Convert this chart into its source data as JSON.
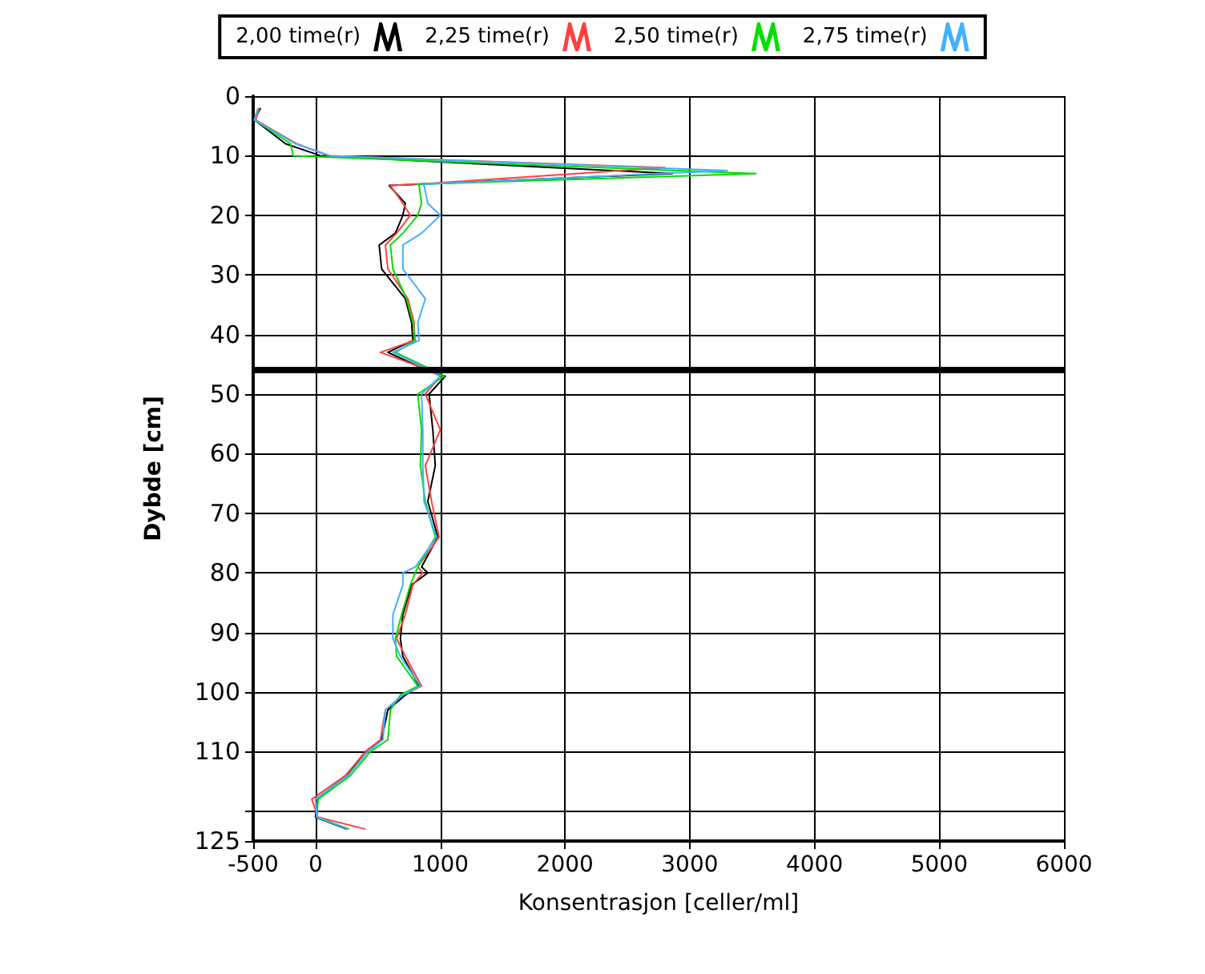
{
  "chart_data": {
    "type": "line",
    "xlabel": "Konsentrasjon [celler/ml]",
    "ylabel": "Dybde [cm]",
    "xlim": [
      -500,
      6000
    ],
    "xticks": [
      -500,
      0,
      1000,
      2000,
      3000,
      4000,
      5000,
      6000
    ],
    "ylim": [
      125,
      0
    ],
    "yticks": [
      0,
      10,
      20,
      30,
      40,
      50,
      60,
      70,
      80,
      90,
      100,
      110,
      {
        "value": 120,
        "label": null
      },
      125
    ],
    "grid": true,
    "legend": "top",
    "marker": "none",
    "line_style": "solid",
    "ref_lines": [
      {
        "axis": "y",
        "value": 46,
        "color": "#000000"
      }
    ],
    "series": [
      {
        "name": "2,00 time(r)",
        "color": "#000000",
        "x": [
          -440,
          -490,
          -240,
          40,
          2860,
          810,
          590,
          720,
          700,
          640,
          510,
          530,
          720,
          770,
          780,
          580,
          850,
          1040,
          910,
          940,
          960,
          900,
          980,
          850,
          900,
          770,
          700,
          680,
          700,
          830,
          720,
          580,
          530,
          400,
          250,
          10,
          0,
          250
        ],
        "values": [
          2,
          4,
          8,
          10,
          13,
          14.8,
          15,
          18,
          20,
          23,
          25,
          29,
          34,
          38,
          41,
          43,
          45.6,
          47,
          50,
          56,
          62,
          68,
          74,
          79,
          80,
          82,
          87,
          91,
          94,
          99,
          100.5,
          103,
          108,
          110,
          114,
          118,
          121,
          123
        ]
      },
      {
        "name": "2,25 time(r)",
        "color": "#ff4040",
        "x": [
          -450,
          -480,
          -150,
          100,
          2800,
          820,
          600,
          700,
          760,
          650,
          560,
          580,
          740,
          790,
          790,
          520,
          860,
          1000,
          880,
          1000,
          880,
          930,
          990,
          820,
          860,
          780,
          720,
          650,
          720,
          850,
          700,
          560,
          520,
          400,
          240,
          -30,
          20,
          400
        ],
        "values": [
          2,
          4,
          8,
          10,
          12,
          14.8,
          15,
          18,
          20,
          23,
          25,
          29,
          34,
          38,
          41,
          43,
          45.6,
          47,
          50,
          56,
          62,
          68,
          74,
          79,
          80,
          82,
          87,
          91,
          94,
          99,
          100.5,
          103,
          108,
          110,
          114,
          118,
          121,
          123
        ]
      },
      {
        "name": "2,50 time(r)",
        "color": "#00dd00",
        "x": [
          -460,
          -490,
          -200,
          -180,
          3530,
          820,
          830,
          850,
          820,
          700,
          600,
          620,
          730,
          780,
          800,
          640,
          900,
          1030,
          820,
          850,
          840,
          880,
          960,
          820,
          800,
          760,
          690,
          640,
          650,
          820,
          680,
          600,
          580,
          440,
          280,
          20,
          10,
          270
        ],
        "values": [
          2,
          4,
          8,
          10,
          13,
          14.8,
          15,
          18,
          20,
          23,
          25,
          29,
          34,
          38,
          41,
          43,
          45.6,
          47,
          50,
          56,
          62,
          68,
          74,
          79,
          80,
          82,
          87,
          91,
          94,
          99,
          100.5,
          103,
          108,
          110,
          114,
          118,
          121,
          123
        ]
      },
      {
        "name": "2,75 time(r)",
        "color": "#40b0ff",
        "x": [
          -460,
          -490,
          -160,
          120,
          3300,
          860,
          870,
          900,
          1000,
          850,
          700,
          700,
          880,
          820,
          830,
          620,
          880,
          1000,
          850,
          860,
          860,
          870,
          970,
          800,
          700,
          700,
          620,
          620,
          680,
          840,
          700,
          560,
          540,
          420,
          260,
          0,
          10,
          260
        ],
        "values": [
          2,
          4,
          8,
          10,
          12.5,
          14.8,
          15,
          18,
          20,
          23,
          25,
          29,
          34,
          38,
          41,
          43,
          45.6,
          47,
          50,
          56,
          62,
          68,
          74,
          79,
          80,
          82,
          87,
          91,
          94,
          99,
          100.5,
          103,
          108,
          110,
          114,
          118,
          121,
          123
        ]
      }
    ]
  }
}
